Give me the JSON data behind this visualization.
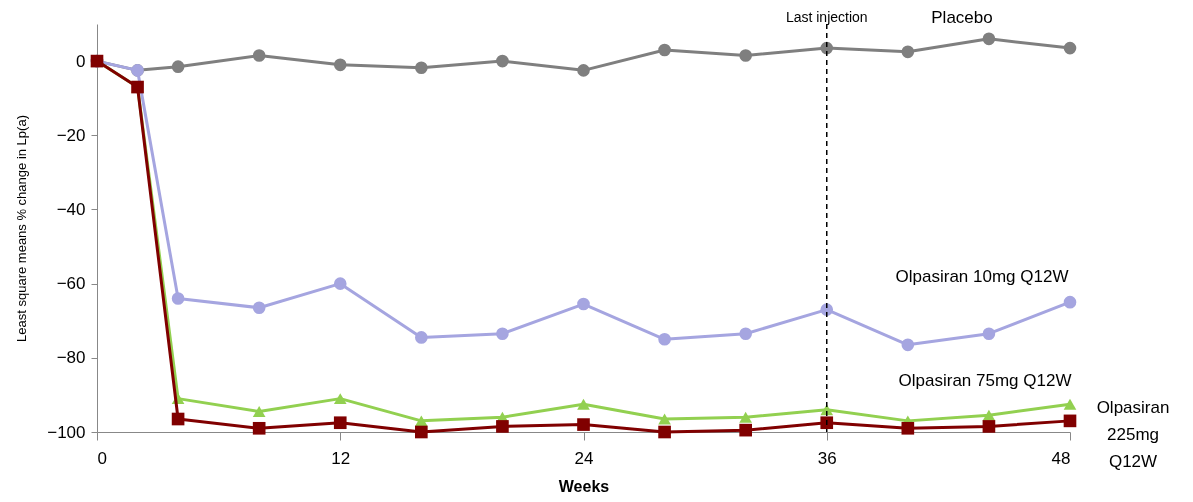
{
  "chart_data": {
    "type": "line",
    "xlabel": "Weeks",
    "ylabel": "Least square means  % change in Lp(a)",
    "x": [
      0,
      2,
      4,
      8,
      12,
      16,
      20,
      24,
      28,
      32,
      36,
      40,
      44,
      48
    ],
    "series": [
      {
        "name": "Placebo",
        "color": "#7f7f7f",
        "marker": "circle",
        "values": [
          0,
          -2.5,
          -1.5,
          1.5,
          -1,
          -1.8,
          0,
          -2.5,
          3,
          1.5,
          3.5,
          2.5,
          6,
          3.5
        ]
      },
      {
        "name": "Olpasiran 10mg Q12W",
        "color": "#a5a5e0",
        "marker": "circle",
        "values": [
          0,
          -2.5,
          -64,
          -66.5,
          -60,
          -74.5,
          -73.5,
          -65.5,
          -75,
          -73.5,
          -67,
          -76.5,
          -73.5,
          -65
        ]
      },
      {
        "name": "Olpasiran 75mg Q12W",
        "color": "#92d050",
        "marker": "triangle",
        "values": [
          0,
          -7,
          -91,
          -94.5,
          -91,
          -97,
          -96,
          -92.5,
          -96.5,
          -96,
          -94,
          -97,
          -95.5,
          -92.5
        ]
      },
      {
        "name": "Olpasiran 225mg Q12W",
        "color": "#800000",
        "marker": "square",
        "values": [
          0,
          -7,
          -96.5,
          -99,
          -97.5,
          -100,
          -98.5,
          -98,
          -100,
          -99.5,
          -97.5,
          -99,
          -98.5,
          -97
        ]
      }
    ],
    "xlim": [
      0,
      48
    ],
    "xticks": [
      0,
      12,
      24,
      36,
      48
    ],
    "ylim": [
      -100,
      10
    ],
    "yticks": [
      -100,
      -80,
      -60,
      -40,
      -20,
      0
    ],
    "ref_lines": [
      {
        "axis": "x",
        "value": 36,
        "label": "Last injection",
        "color": "#000000",
        "line_style": "dashed"
      }
    ],
    "grid": false,
    "legend": false
  }
}
